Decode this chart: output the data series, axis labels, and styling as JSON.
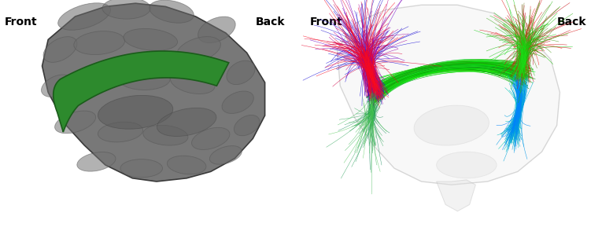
{
  "fig_width": 7.65,
  "fig_height": 2.94,
  "dpi": 100,
  "background_color": "#ffffff",
  "left_panel": {
    "front_label": "Front",
    "back_label": "Back",
    "brain_gray": "#808080",
    "cingulate_color": "#2d8a2d",
    "cingulate_outline": "#1a5c1a"
  },
  "right_panel": {
    "front_label": "Front",
    "back_label": "Back"
  }
}
